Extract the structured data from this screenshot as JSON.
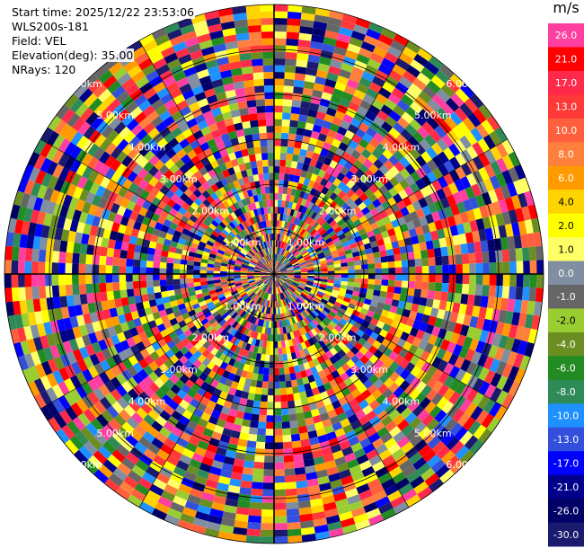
{
  "header": {
    "start_time": "Start time: 2025/12/22 23:53:06",
    "site": "WLS200s-181",
    "field": "Field: VEL",
    "elevation": "Elevation(deg): 35.00",
    "nrays": "NRays: 120"
  },
  "colorbar": {
    "unit": "m/s",
    "levels": [
      {
        "label": "26.0",
        "color": "#ff3fa0"
      },
      {
        "label": "21.0",
        "color": "#ff0000"
      },
      {
        "label": "17.0",
        "color": "#ff2a4a"
      },
      {
        "label": "13.0",
        "color": "#ff3838"
      },
      {
        "label": "10.0",
        "color": "#ff5f3c"
      },
      {
        "label": "8.0",
        "color": "#ff7f3c"
      },
      {
        "label": "6.0",
        "color": "#ff9a00"
      },
      {
        "label": "4.0",
        "color": "#ffd400"
      },
      {
        "label": "2.0",
        "color": "#ffff00"
      },
      {
        "label": "1.0",
        "color": "#ffff66"
      },
      {
        "label": "0.0",
        "color": "#7f8ea0"
      },
      {
        "label": "-1.0",
        "color": "#666666"
      },
      {
        "label": "-2.0",
        "color": "#9acd32"
      },
      {
        "label": "-4.0",
        "color": "#6b8e23"
      },
      {
        "label": "-6.0",
        "color": "#228b22"
      },
      {
        "label": "-8.0",
        "color": "#2e8b57"
      },
      {
        "label": "-10.0",
        "color": "#1e90ff"
      },
      {
        "label": "-13.0",
        "color": "#3250dc"
      },
      {
        "label": "-17.0",
        "color": "#0000ff"
      },
      {
        "label": "-21.0",
        "color": "#00008b"
      },
      {
        "label": "-26.0",
        "color": "#000066"
      },
      {
        "label": "-30.0",
        "color": "#1a1a6e"
      }
    ]
  },
  "chart_data": {
    "type": "heatmap",
    "projection": "polar-ppi",
    "field": "VEL",
    "unit": "m/s",
    "elevation_deg": 35.0,
    "nrays": 120,
    "range_km": [
      0,
      6.0
    ],
    "range_rings_km": [
      1.0,
      2.0,
      3.0,
      4.0,
      5.0,
      6.0
    ],
    "range_ring_labels": [
      "1.00km",
      "2.00km",
      "3.00km",
      "4.00km",
      "5.00km",
      "6.00km"
    ],
    "color_levels": [
      -30.0,
      -26.0,
      -21.0,
      -17.0,
      -13.0,
      -10.0,
      -8.0,
      -6.0,
      -4.0,
      -2.0,
      -1.0,
      0.0,
      1.0,
      2.0,
      4.0,
      6.0,
      8.0,
      10.0,
      13.0,
      17.0,
      21.0,
      26.0
    ],
    "value_field_note": "Velocity field appears noisy/random across all gates"
  }
}
